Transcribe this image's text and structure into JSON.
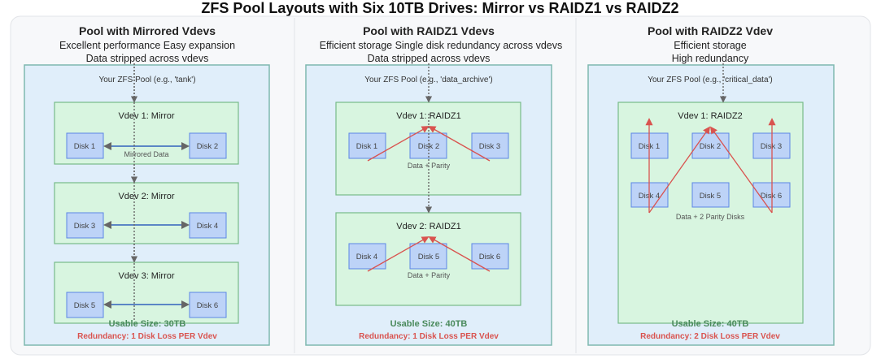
{
  "title": "ZFS Pool Layouts with Six 10TB Drives: Mirror vs RAIDZ1 vs RAIDZ2",
  "colors": {
    "pool_bg": "#e0eefa",
    "vdev_bg": "#d8f5e0",
    "disk_bg": "#bdd3f7",
    "usable": "#4a8a5c",
    "redundancy": "#d9534f",
    "parity_arrow": "#d9534f",
    "mirror_arrow": "#5b86c5"
  },
  "columns": [
    {
      "heading": "Pool with Mirrored Vdevs",
      "subtitle_1": "Excellent performance Easy expansion",
      "subtitle_2": "Data stripped across vdevs",
      "pool_label": "Your ZFS Pool (e.g., 'tank')",
      "vdevs": [
        {
          "label": "Vdev 1: Mirror",
          "disks": [
            "Disk 1",
            "Disk 2"
          ],
          "note": "Mirrored Data"
        },
        {
          "label": "Vdev 2: Mirror",
          "disks": [
            "Disk 3",
            "Disk 4"
          ]
        },
        {
          "label": "Vdev 3: Mirror",
          "disks": [
            "Disk 5",
            "Disk 6"
          ]
        }
      ],
      "usable": "Usable Size: 30TB",
      "redundancy": "Redundancy: 1 Disk Loss PER Vdev"
    },
    {
      "heading": "Pool with RAIDZ1 Vdevs",
      "subtitle_1": "Efficient storage  Single disk redundancy across vdevs",
      "subtitle_2": "Data stripped across vdevs",
      "pool_label": "Your ZFS Pool (e.g., 'data_archive')",
      "vdevs": [
        {
          "label": "Vdev 1: RAIDZ1",
          "disks": [
            "Disk 1",
            "Disk 2",
            "Disk 3"
          ],
          "note": "Data + Parity"
        },
        {
          "label": "Vdev 2: RAIDZ1",
          "disks": [
            "Disk 4",
            "Disk 5",
            "Disk 6"
          ],
          "note": "Data + Parity"
        }
      ],
      "usable": "Usable Size: 40TB",
      "redundancy": "Redundancy: 1 Disk Loss PER Vdev"
    },
    {
      "heading": "Pool with RAIDZ2 Vdev",
      "subtitle_1": "Efficient storage",
      "subtitle_2": "High redundancy",
      "pool_label": "Your ZFS Pool (e.g., 'critical_data')",
      "vdevs": [
        {
          "label": "Vdev 1: RAIDZ2",
          "disks": [
            "Disk 1",
            "Disk 2",
            "Disk 3",
            "Disk 4",
            "Disk 5",
            "Disk 6"
          ],
          "note": "Data + 2 Parity Disks"
        }
      ],
      "usable": "Usable Size: 40TB",
      "redundancy": "Redundancy: 2 Disk Loss PER Vdev"
    }
  ]
}
